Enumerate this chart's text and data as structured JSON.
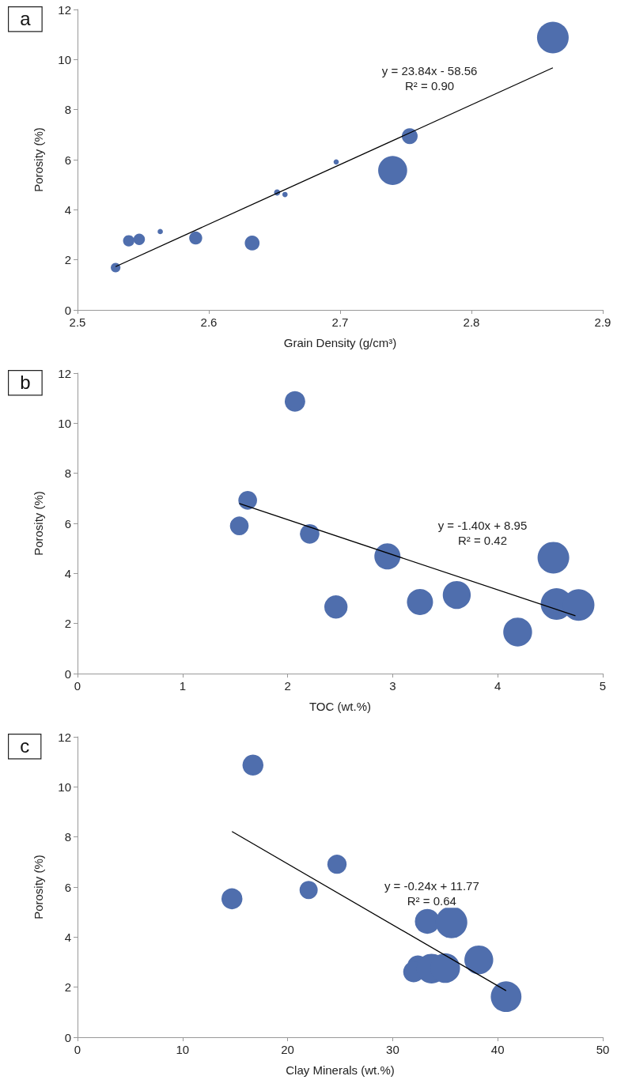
{
  "chart_data": [
    {
      "type": "bubble",
      "xlabel": "Grain Density (g/cm³)",
      "ylabel": "Porosity (%)",
      "xlim": [
        2.5,
        2.9
      ],
      "xticks": [
        2.5,
        2.6,
        2.7,
        2.8,
        2.9
      ],
      "ylim": [
        0,
        12
      ],
      "yticks": [
        0,
        2,
        4,
        6,
        8,
        10,
        12
      ],
      "grid": false,
      "annotations": [
        "a",
        "y = 23.84x - 58.56",
        "R² = 0.90"
      ],
      "series": [
        {
          "type": "bubble",
          "color": "#4f6ead",
          "x": [
            2.529,
            2.539,
            2.547,
            2.563,
            2.59,
            2.633,
            2.652,
            2.658,
            2.697,
            2.74,
            2.753,
            2.862
          ],
          "values": [
            1.69,
            2.76,
            2.82,
            3.13,
            2.87,
            2.67,
            4.69,
            4.61,
            5.91,
            5.57,
            6.94,
            10.88
          ],
          "sizes": [
            0.093,
            0.13,
            0.13,
            0.028,
            0.17,
            0.22,
            0.038,
            0.028,
            0.028,
            0.84,
            0.25,
            1
          ]
        },
        {
          "type": "line",
          "color": "#000000",
          "marker": "none",
          "line_style": "solid",
          "x": [
            2.529,
            2.862
          ],
          "values": [
            1.73,
            9.67
          ]
        }
      ]
    },
    {
      "type": "bubble",
      "xlabel": "TOC (wt.%)",
      "ylabel": "Porosity (%)",
      "xlim": [
        0,
        5
      ],
      "xticks": [
        0,
        1,
        2,
        3,
        4,
        5
      ],
      "ylim": [
        0,
        12
      ],
      "yticks": [
        0,
        2,
        4,
        6,
        8,
        10,
        12
      ],
      "grid": false,
      "annotations": [
        "b",
        "y = -1.40x + 8.95",
        "R² = 0.42"
      ],
      "series": [
        {
          "type": "bubble",
          "color": "#4f6ead",
          "x": [
            2.07,
            1.62,
            1.54,
            2.21,
            2.95,
            2.46,
            3.26,
            3.61,
            4.53,
            4.56,
            4.77,
            4.19
          ],
          "values": [
            10.87,
            6.92,
            5.9,
            5.58,
            4.68,
            2.66,
            2.86,
            3.14,
            4.63,
            2.78,
            2.74,
            1.66
          ],
          "sizes": [
            0.42,
            0.35,
            0.35,
            0.38,
            0.68,
            0.54,
            0.68,
            0.78,
            1,
            1,
            1,
            0.83
          ]
        },
        {
          "type": "line",
          "color": "#000000",
          "marker": "none",
          "line_style": "solid",
          "x": [
            1.54,
            4.74
          ],
          "values": [
            6.79,
            2.31
          ]
        }
      ]
    },
    {
      "type": "bubble",
      "xlabel": "Clay Minerals (wt.%)",
      "ylabel": "Porosity (%)",
      "xlim": [
        0,
        50
      ],
      "xticks": [
        0,
        10,
        20,
        30,
        40,
        50
      ],
      "ylim": [
        0,
        12
      ],
      "yticks": [
        0,
        2,
        4,
        6,
        8,
        10,
        12
      ],
      "grid": false,
      "annotations": [
        "c",
        "y = -0.24x + 11.77",
        "R² = 0.64"
      ],
      "series": [
        {
          "type": "bubble",
          "color": "#4f6ead",
          "x": [
            16.7,
            14.7,
            22.0,
            24.7,
            33.3,
            35.6,
            38.2,
            32.4,
            32.0,
            33.7,
            35.0,
            40.8
          ],
          "values": [
            10.87,
            5.53,
            5.88,
            6.91,
            4.63,
            4.59,
            3.09,
            2.85,
            2.61,
            2.74,
            2.76,
            1.62
          ],
          "sizes": [
            0.44,
            0.44,
            0.33,
            0.37,
            0.62,
            1,
            0.83,
            0.44,
            0.44,
            0.88,
            0.88,
            0.94
          ]
        },
        {
          "type": "line",
          "color": "#000000",
          "marker": "none",
          "line_style": "solid",
          "x": [
            14.7,
            40.8
          ],
          "values": [
            8.22,
            1.86
          ]
        }
      ]
    }
  ]
}
